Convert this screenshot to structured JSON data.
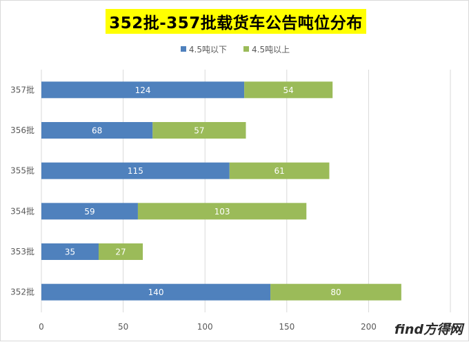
{
  "chart_data": {
    "type": "bar",
    "orientation": "horizontal",
    "stacked": true,
    "title": "352批-357批载货车公告吨位分布",
    "categories": [
      "357批",
      "356批",
      "355批",
      "354批",
      "353批",
      "352批"
    ],
    "series": [
      {
        "name": "4.5吨以下",
        "color": "#4f81bd",
        "values": [
          124,
          68,
          115,
          59,
          35,
          140
        ]
      },
      {
        "name": "4.5吨以上",
        "color": "#9bbb59",
        "values": [
          54,
          57,
          61,
          103,
          27,
          80
        ]
      }
    ],
    "xlim": [
      0,
      250
    ],
    "xticks": [
      0,
      50,
      100,
      150,
      200,
      250
    ],
    "grid": true,
    "legend_position": "top"
  },
  "watermark": "find方得网"
}
